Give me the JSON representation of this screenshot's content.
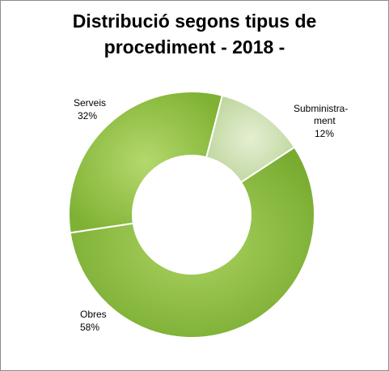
{
  "chart_data": {
    "type": "pie",
    "title_lines": [
      "Distribució segons tipus de",
      "procediment - 2018 -"
    ],
    "slices": [
      {
        "name": "Serveis",
        "value": 32,
        "label": "Serveis",
        "pct_label": "32%",
        "color": "#92c244"
      },
      {
        "name": "Subministrament",
        "value": 12,
        "label_lines": [
          "Subministra-",
          "ment"
        ],
        "pct_label": "12%",
        "color": "#cfe0b4"
      },
      {
        "name": "Obres",
        "value": 58,
        "label": "Obres",
        "pct_label": "58%",
        "color": "#8abb3c"
      }
    ],
    "hole": true
  }
}
